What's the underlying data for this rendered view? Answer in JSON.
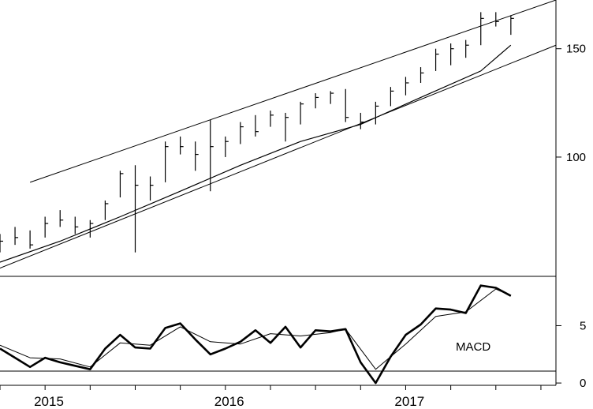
{
  "chart_data": [
    {
      "type": "ohlc",
      "panel": "price",
      "y_scale": "log",
      "ylim": [
        64,
        180
      ],
      "y_ticks": [
        "150",
        "100"
      ],
      "x_ticks": [
        "2015",
        "2016",
        "2017"
      ],
      "x_range": [
        "2014-11",
        "2017-12"
      ],
      "moving_average": [
        [
          "2014-11",
          67.5
        ],
        [
          "2015-03",
          73
        ],
        [
          "2015-07",
          80
        ],
        [
          "2015-11",
          88
        ],
        [
          "2016-03",
          97
        ],
        [
          "2016-07",
          106
        ],
        [
          "2016-11",
          113
        ],
        [
          "2017-03",
          125
        ],
        [
          "2017-07",
          138
        ],
        [
          "2017-09",
          152
        ]
      ],
      "trendlines": [
        {
          "from": [
            "2015-01",
            91
          ],
          "to": [
            "2017-12",
            180
          ]
        },
        {
          "from": [
            "2014-11",
            66
          ],
          "to": [
            "2017-12",
            152
          ]
        }
      ],
      "bars": [
        [
          "2014-11",
          75,
          70,
          73
        ],
        [
          "2014-12",
          77,
          72,
          74
        ],
        [
          "2015-01",
          76,
          71,
          72
        ],
        [
          "2015-02",
          80,
          74,
          78
        ],
        [
          "2015-03",
          82,
          77,
          79
        ],
        [
          "2015-04",
          80,
          75,
          77
        ],
        [
          "2015-05",
          79,
          74,
          78
        ],
        [
          "2015-06",
          85,
          79,
          84
        ],
        [
          "2015-07",
          95,
          86,
          94
        ],
        [
          "2015-08",
          97,
          70,
          90
        ],
        [
          "2015-09",
          93,
          85,
          90
        ],
        [
          "2015-10",
          106,
          91,
          104
        ],
        [
          "2015-11",
          108,
          101,
          104
        ],
        [
          "2015-12",
          106,
          95,
          101
        ],
        [
          "2016-01",
          115,
          88,
          104
        ],
        [
          "2016-02",
          108,
          100,
          106
        ],
        [
          "2016-03",
          114,
          105,
          112
        ],
        [
          "2016-04",
          117,
          108,
          110
        ],
        [
          "2016-05",
          119,
          112,
          117
        ],
        [
          "2016-06",
          118,
          106,
          116
        ],
        [
          "2016-07",
          123,
          113,
          122
        ],
        [
          "2016-08",
          127,
          120,
          125
        ],
        [
          "2016-09",
          128,
          122,
          127
        ],
        [
          "2016-10",
          129,
          114,
          116
        ],
        [
          "2016-11",
          118,
          111,
          114
        ],
        [
          "2016-12",
          123,
          113,
          121
        ],
        [
          "2017-01",
          130,
          121,
          128
        ],
        [
          "2017-02",
          135,
          126,
          132
        ],
        [
          "2017-03",
          140,
          132,
          137
        ],
        [
          "2017-04",
          150,
          138,
          147
        ],
        [
          "2017-05",
          153,
          141,
          150
        ],
        [
          "2017-06",
          155,
          145,
          152
        ],
        [
          "2017-07",
          172,
          152,
          168
        ],
        [
          "2017-08",
          172,
          163,
          166
        ],
        [
          "2017-09",
          170,
          158,
          168
        ]
      ]
    },
    {
      "type": "line",
      "panel": "indicator",
      "label": "MACD",
      "ylim": [
        -0.2,
        9.3
      ],
      "y_ticks": [
        "5",
        "0"
      ],
      "series": [
        {
          "style": "thick",
          "points": [
            [
              "2014-11",
              3.0
            ],
            [
              "2014-12",
              2.2
            ],
            [
              "2015-01",
              1.4
            ],
            [
              "2015-02",
              2.2
            ],
            [
              "2015-03",
              1.8
            ],
            [
              "2015-04",
              1.5
            ],
            [
              "2015-05",
              1.2
            ],
            [
              "2015-06",
              3.0
            ],
            [
              "2015-07",
              4.2
            ],
            [
              "2015-08",
              3.1
            ],
            [
              "2015-09",
              3.0
            ],
            [
              "2015-10",
              4.8
            ],
            [
              "2015-11",
              5.2
            ],
            [
              "2015-12",
              3.8
            ],
            [
              "2016-01",
              2.5
            ],
            [
              "2016-02",
              3.0
            ],
            [
              "2016-03",
              3.6
            ],
            [
              "2016-04",
              4.6
            ],
            [
              "2016-05",
              3.5
            ],
            [
              "2016-06",
              4.9
            ],
            [
              "2016-07",
              3.1
            ],
            [
              "2016-08",
              4.6
            ],
            [
              "2016-09",
              4.5
            ],
            [
              "2016-10",
              4.7
            ],
            [
              "2016-11",
              1.8
            ],
            [
              "2016-12",
              0.0
            ],
            [
              "2017-01",
              2.3
            ],
            [
              "2017-02",
              4.2
            ],
            [
              "2017-03",
              5.1
            ],
            [
              "2017-04",
              6.5
            ],
            [
              "2017-05",
              6.4
            ],
            [
              "2017-06",
              6.1
            ],
            [
              "2017-07",
              8.5
            ],
            [
              "2017-08",
              8.3
            ],
            [
              "2017-09",
              7.6
            ]
          ]
        },
        {
          "style": "thin",
          "points": [
            [
              "2014-11",
              3.3
            ],
            [
              "2015-01",
              2.2
            ],
            [
              "2015-03",
              2.1
            ],
            [
              "2015-05",
              1.4
            ],
            [
              "2015-07",
              3.5
            ],
            [
              "2015-09",
              3.3
            ],
            [
              "2015-11",
              4.9
            ],
            [
              "2016-01",
              3.6
            ],
            [
              "2016-03",
              3.4
            ],
            [
              "2016-05",
              4.3
            ],
            [
              "2016-07",
              4.1
            ],
            [
              "2016-09",
              4.4
            ],
            [
              "2016-10",
              4.7
            ],
            [
              "2016-12",
              1.2
            ],
            [
              "2017-02",
              3.4
            ],
            [
              "2017-04",
              5.8
            ],
            [
              "2017-06",
              6.2
            ],
            [
              "2017-08",
              8.2
            ],
            [
              "2017-09",
              7.6
            ]
          ]
        }
      ]
    }
  ]
}
